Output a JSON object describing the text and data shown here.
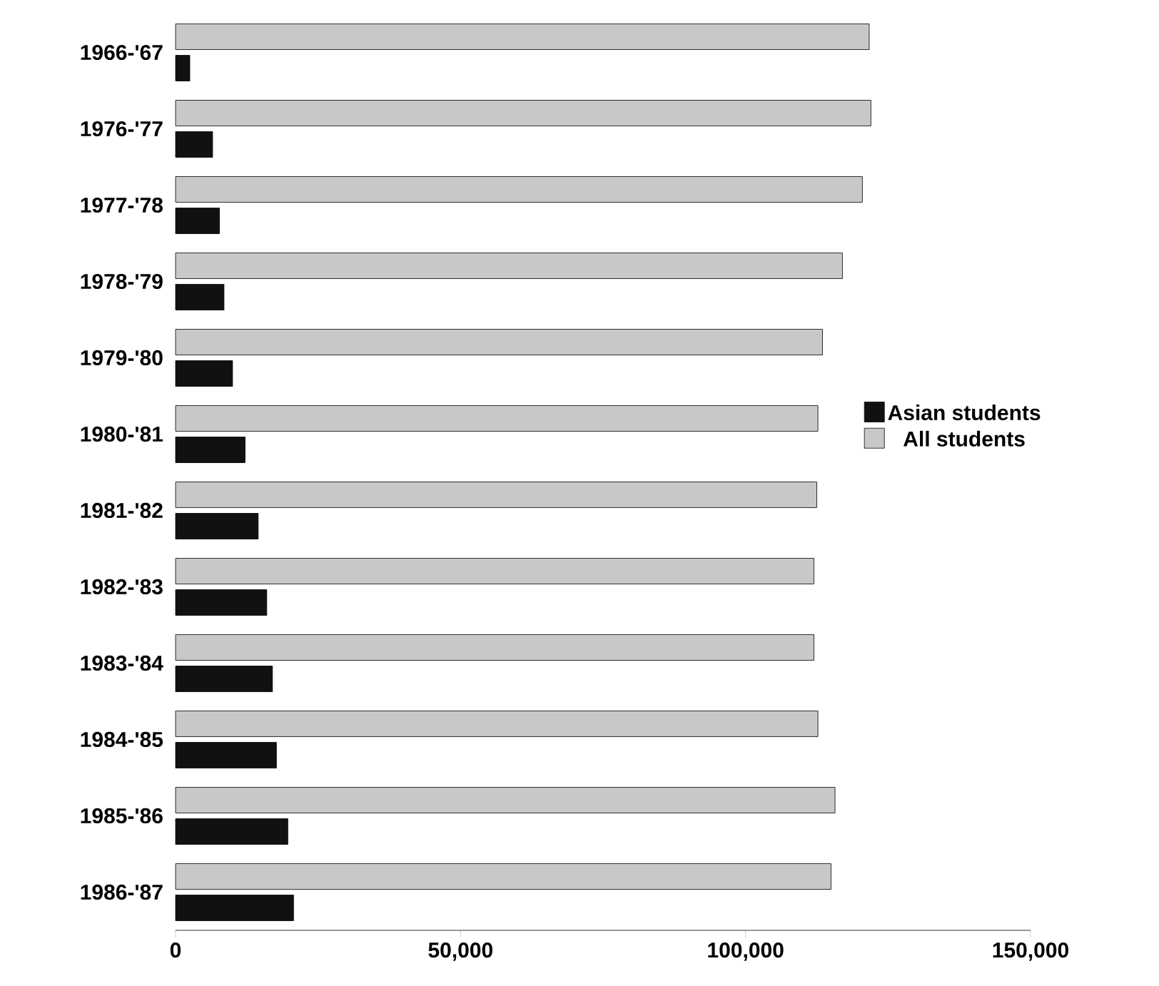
{
  "chart_data": {
    "type": "bar",
    "orientation": "horizontal",
    "categories": [
      "1966-'67",
      "1976-'77",
      "1977-'78",
      "1978-'79",
      "1979-'80",
      "1980-'81",
      "1981-'82",
      "1982-'83",
      "1983-'84",
      "1984-'85",
      "1985-'86",
      "1986-'87"
    ],
    "series": [
      {
        "name": "Asian students",
        "color": "#111111",
        "values": [
          2500,
          6500,
          7700,
          8500,
          10000,
          12200,
          14500,
          16000,
          17000,
          17700,
          19700,
          20700
        ]
      },
      {
        "name": "All students",
        "color": "#c8c8c8",
        "values": [
          121700,
          122000,
          120500,
          117000,
          113500,
          112700,
          112500,
          112000,
          112000,
          112700,
          115700,
          115000
        ]
      }
    ],
    "xlim": [
      0,
      150000
    ],
    "xticks": [
      0,
      {
        "value": 50000,
        "label": "50,000"
      },
      {
        "value": 100000,
        "label": "100,000"
      },
      {
        "value": 150000,
        "label": "150,000"
      }
    ],
    "grid": false,
    "legend": "right"
  }
}
